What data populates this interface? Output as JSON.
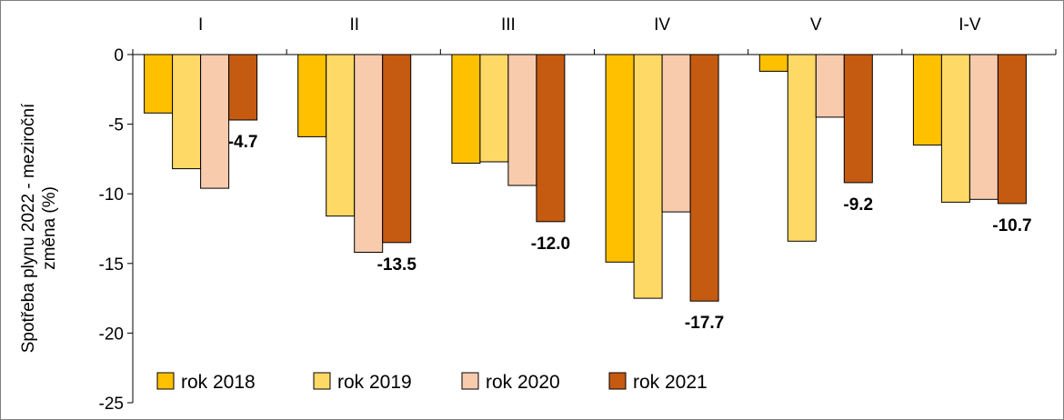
{
  "chart_data": {
    "type": "bar",
    "title": "",
    "xlabel": "",
    "ylabel": "Spotřeba plynu 2022 - meziroční změna (%)",
    "ylabel_lines": [
      "Spotřeba plynu 2022 - meziroční",
      "změna (%)"
    ],
    "categories": [
      "I",
      "II",
      "III",
      "IV",
      "V",
      "I-V"
    ],
    "category_axis_position": "top",
    "ylim": [
      -25,
      0
    ],
    "yticks": [
      0,
      -5,
      -10,
      -15,
      -20,
      -25
    ],
    "ytick_labels": [
      "0",
      "-5",
      "-10",
      "-15",
      "-20",
      "-25"
    ],
    "grid": false,
    "legend_position": "bottom-left",
    "series": [
      {
        "name": "rok 2018",
        "color": "#FFC000",
        "values": [
          -4.2,
          -5.9,
          -7.8,
          -14.9,
          -1.2,
          -6.5
        ]
      },
      {
        "name": "rok 2019",
        "color": "#FFD966",
        "values": [
          -8.2,
          -11.6,
          -7.7,
          -17.5,
          -13.4,
          -10.6
        ]
      },
      {
        "name": "rok 2020",
        "color": "#F8CBAD",
        "values": [
          -9.6,
          -14.2,
          -9.4,
          -11.3,
          -4.5,
          -10.4
        ]
      },
      {
        "name": "rok 2021",
        "color": "#C55A11",
        "values": [
          -4.7,
          -13.5,
          -12.0,
          -17.7,
          -9.2,
          -10.7
        ]
      }
    ],
    "data_labels": {
      "series": "rok 2021",
      "texts": [
        "-4.7",
        "-13.5",
        "-12.0",
        "-17.7",
        "-9.2",
        "-10.7"
      ]
    }
  }
}
